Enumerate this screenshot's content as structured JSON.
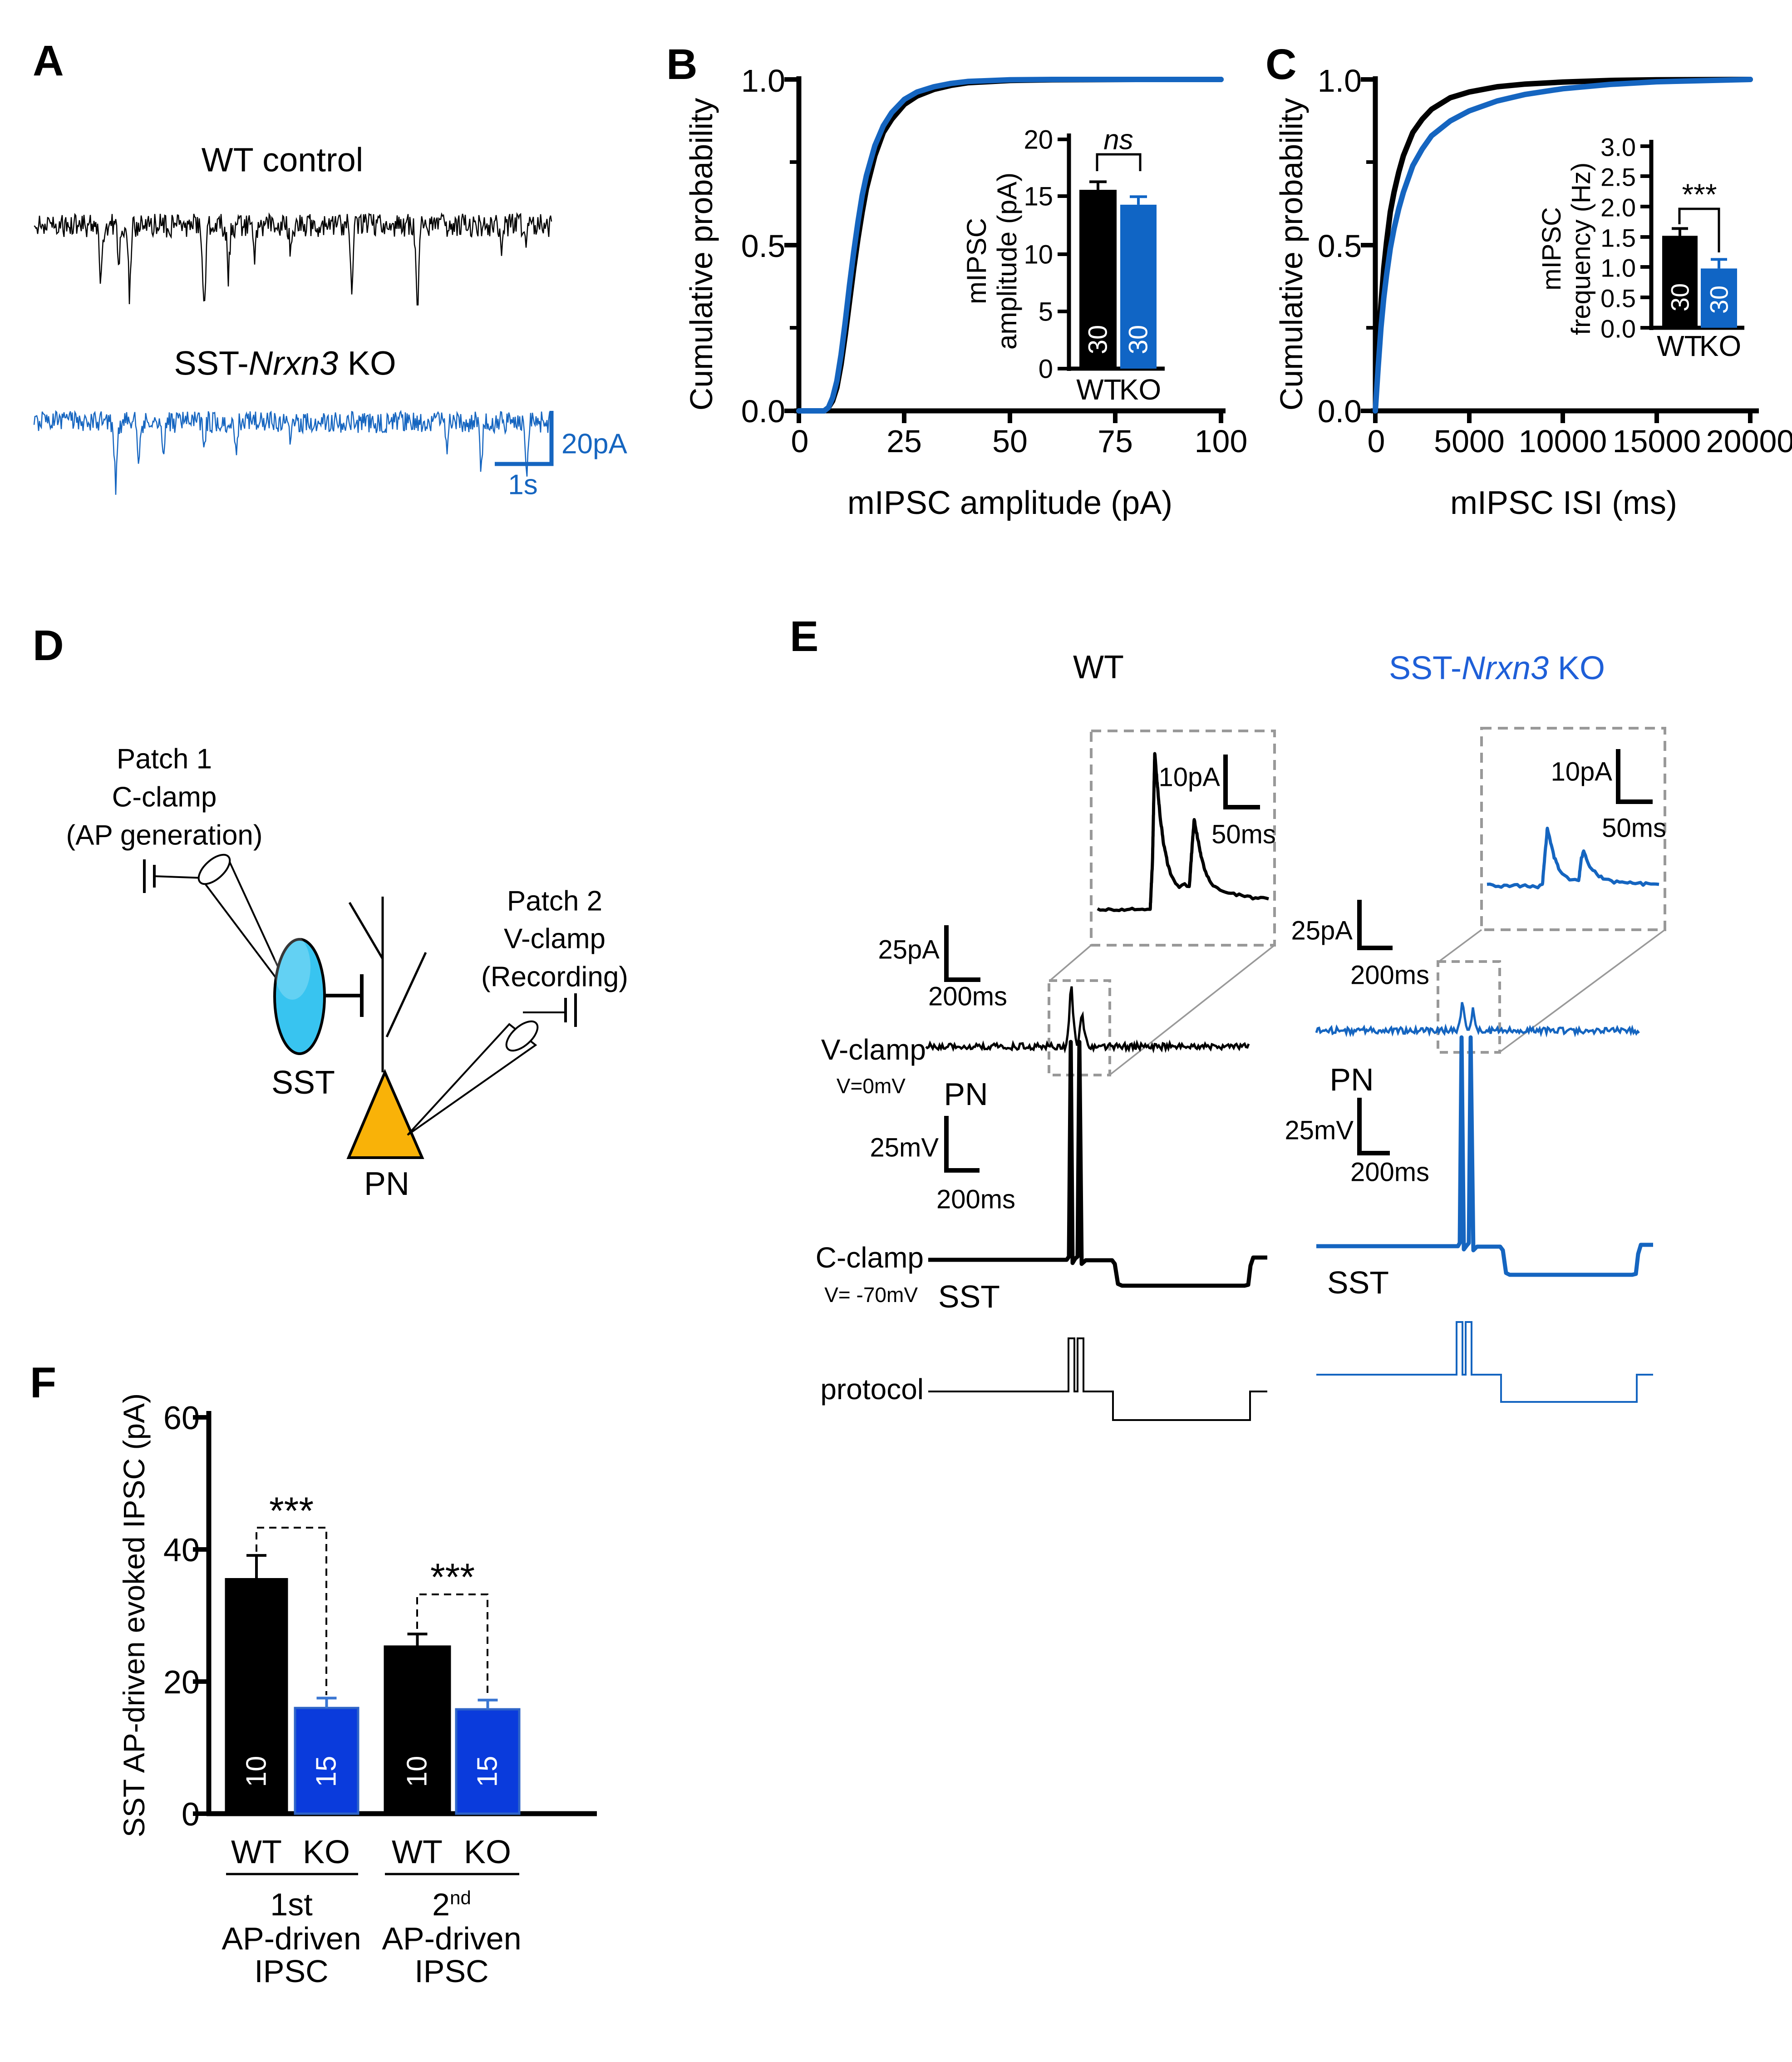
{
  "colors": {
    "black": "#000000",
    "trace_blue": "#1565C0",
    "bright_blue": "#0A3BDC",
    "bright_blue_stroke": "#2E64C8",
    "err_blue": "#3A76D2",
    "title_blue": "#1E5FD8",
    "cyan_cell": "#38C4F0",
    "orange_cell": "#F9B208",
    "dash_gray": "#999999"
  },
  "panelA": {
    "label": "A",
    "wt_title": "WT control",
    "ko_title": {
      "prefix": "SST-",
      "italic": "Nrxn3",
      "suffix": " KO"
    },
    "scale_amp": "20pA",
    "scale_time": "1s"
  },
  "panelB": {
    "label": "B",
    "ylabel": "Cumulative probability",
    "xlabel": "mIPSC amplitude (pA)",
    "yticks": [
      "1.0",
      "0.5",
      "0.0"
    ],
    "xticks": [
      "0",
      "25",
      "50",
      "75",
      "100"
    ],
    "inset": {
      "ylabel_line1": "mIPSC",
      "ylabel_line2": "amplitude (pA)",
      "yticks": [
        "20",
        "15",
        "10",
        "5",
        "0"
      ],
      "xcats": [
        "WT",
        "KO"
      ],
      "sig": "ns",
      "n": [
        "30",
        "30"
      ]
    }
  },
  "panelC": {
    "label": "C",
    "ylabel": "Cumulative probability",
    "xlabel": "mIPSC ISI (ms)",
    "yticks": [
      "1.0",
      "0.5",
      "0.0"
    ],
    "xticks": [
      "0",
      "5000",
      "10000",
      "15000",
      "20000"
    ],
    "inset": {
      "ylabel_line1": "mIPSC",
      "ylabel_line2": "frequency (Hz)",
      "yticks": [
        "3.0",
        "2.5",
        "2.0",
        "1.5",
        "1.0",
        "0.5",
        "0.0"
      ],
      "xcats": [
        "WT",
        "KO"
      ],
      "sig": "***",
      "n": [
        "30",
        "30"
      ]
    }
  },
  "panelD": {
    "label": "D",
    "patch1_line1": "Patch 1",
    "patch1_line2": "C-clamp",
    "patch1_line3": "(AP generation)",
    "patch2_line1": "Patch 2",
    "patch2_line2": "V-clamp",
    "patch2_line3": "(Recording)",
    "sst": "SST",
    "pn": "PN"
  },
  "panelE": {
    "label": "E",
    "wt_title": "WT",
    "ko_title": {
      "prefix": "SST-",
      "italic": "Nrxn3",
      "suffix": " KO"
    },
    "wt": {
      "inset_scale_amp": "10pA",
      "inset_scale_time": "50ms",
      "scale_amp": "25pA",
      "scale_time": "200ms",
      "vclamp": "V-clamp",
      "vhold": "V=0mV",
      "vcell": "PN",
      "cscale_amp": "25mV",
      "cscale_time": "200ms",
      "cclamp": "C-clamp",
      "chold": "V= -70mV",
      "ccell": "SST"
    },
    "ko": {
      "inset_scale_amp": "10pA",
      "inset_scale_time": "50ms",
      "scale_amp": "25pA",
      "scale_time": "200ms",
      "vcell": "PN",
      "cscale_amp": "25mV",
      "cscale_time": "200ms",
      "ccell": "SST"
    },
    "protocol": "protocol"
  },
  "panelF": {
    "label": "F",
    "ylabel": "SST AP-driven evoked IPSC (pA)",
    "yticks": [
      "60",
      "40",
      "20",
      "0"
    ],
    "xcats": [
      "WT",
      "KO",
      "WT",
      "KO"
    ],
    "n": [
      "10",
      "15",
      "10",
      "15"
    ],
    "sig1": "***",
    "sig2": "***",
    "group1_line1": "1st",
    "group1_line2": "AP-driven",
    "group1_line3": "IPSC",
    "group2_line1_base": "2",
    "group2_line1_sup": "nd",
    "group2_line2": "AP-driven",
    "group2_line3": "IPSC"
  },
  "chart_data": [
    {
      "id": "B_cumulative",
      "type": "line",
      "xlabel": "mIPSC amplitude (pA)",
      "ylabel": "Cumulative probability",
      "xlim": [
        0,
        100
      ],
      "ylim": [
        0,
        1
      ],
      "x": [
        0,
        6,
        7,
        8,
        9,
        10,
        11,
        12,
        13,
        14,
        15,
        16,
        18,
        20,
        22,
        25,
        28,
        32,
        36,
        40,
        50,
        60,
        80,
        100
      ],
      "series": [
        {
          "name": "WT",
          "color": "#000000",
          "values": [
            0,
            0,
            0.01,
            0.03,
            0.07,
            0.14,
            0.23,
            0.33,
            0.43,
            0.52,
            0.6,
            0.67,
            0.77,
            0.84,
            0.88,
            0.925,
            0.95,
            0.97,
            0.982,
            0.99,
            0.997,
            0.999,
            1.0,
            1.0
          ]
        },
        {
          "name": "SST-Nrxn3 KO",
          "color": "#1565C0",
          "values": [
            0,
            0,
            0.01,
            0.04,
            0.09,
            0.17,
            0.27,
            0.38,
            0.48,
            0.57,
            0.65,
            0.71,
            0.8,
            0.86,
            0.9,
            0.94,
            0.962,
            0.978,
            0.988,
            0.994,
            0.999,
            1.0,
            1.0,
            1.0
          ]
        }
      ]
    },
    {
      "id": "B_inset_bar",
      "type": "bar",
      "ylabel": "mIPSC amplitude (pA)",
      "categories": [
        "WT",
        "KO"
      ],
      "values": [
        15.6,
        14.3
      ],
      "errors": [
        0.7,
        0.7
      ],
      "n": [
        30,
        30
      ],
      "significance": "ns",
      "ylim": [
        0,
        20
      ],
      "colors": [
        "#000000",
        "#1065C5"
      ],
      "err_colors": [
        "#000000",
        "#1065C5"
      ]
    },
    {
      "id": "C_cumulative",
      "type": "line",
      "xlabel": "mIPSC ISI (ms)",
      "ylabel": "Cumulative probability",
      "xlim": [
        0,
        20000
      ],
      "ylim": [
        0,
        1
      ],
      "x": [
        0,
        150,
        300,
        450,
        600,
        800,
        1000,
        1250,
        1500,
        2000,
        2500,
        3000,
        4000,
        5000,
        6500,
        8000,
        10000,
        12500,
        15000,
        20000
      ],
      "series": [
        {
          "name": "WT",
          "color": "#000000",
          "values": [
            0,
            0.17,
            0.32,
            0.43,
            0.51,
            0.6,
            0.66,
            0.72,
            0.77,
            0.84,
            0.88,
            0.91,
            0.945,
            0.962,
            0.978,
            0.986,
            0.992,
            0.997,
            0.999,
            1.0
          ]
        },
        {
          "name": "SST-Nrxn3 KO",
          "color": "#1565C0",
          "values": [
            0,
            0.13,
            0.25,
            0.34,
            0.41,
            0.49,
            0.55,
            0.61,
            0.66,
            0.74,
            0.79,
            0.83,
            0.875,
            0.905,
            0.935,
            0.955,
            0.972,
            0.985,
            0.993,
            1.0
          ]
        }
      ]
    },
    {
      "id": "C_inset_bar",
      "type": "bar",
      "ylabel": "mIPSC frequency (Hz)",
      "categories": [
        "WT",
        "KO"
      ],
      "values": [
        1.52,
        0.98
      ],
      "errors": [
        0.12,
        0.15
      ],
      "n": [
        30,
        30
      ],
      "significance": "***",
      "ylim": [
        0,
        3
      ],
      "colors": [
        "#000000",
        "#1065C5"
      ],
      "err_colors": [
        "#000000",
        "#1065C5"
      ]
    },
    {
      "id": "F_bar",
      "type": "bar",
      "ylabel": "SST AP-driven evoked IPSC (pA)",
      "groups": [
        "1st AP-driven IPSC",
        "2nd AP-driven IPSC"
      ],
      "categories": [
        "WT",
        "KO",
        "WT",
        "KO"
      ],
      "values": [
        35.5,
        16.0,
        25.3,
        15.8
      ],
      "errors": [
        3.6,
        1.5,
        1.9,
        1.4
      ],
      "n": [
        10,
        15,
        10,
        15
      ],
      "significance": [
        "***",
        "***"
      ],
      "ylim": [
        0,
        60
      ],
      "colors": [
        "#000000",
        "#0A3BDC",
        "#000000",
        "#0A3BDC"
      ],
      "strokes": [
        "#000000",
        "#2E64C8",
        "#000000",
        "#2E64C8"
      ],
      "err_colors": [
        "#000000",
        "#3A76D2",
        "#000000",
        "#3A76D2"
      ]
    }
  ]
}
